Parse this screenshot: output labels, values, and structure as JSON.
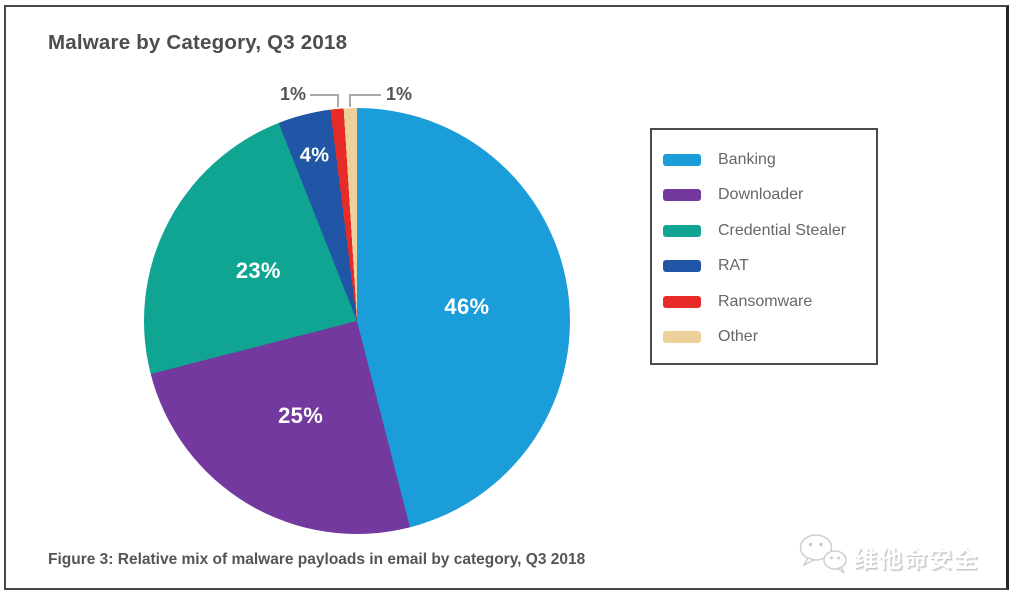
{
  "page": {
    "title": "Malware by Category, Q3 2018",
    "caption": "Figure 3: Relative mix of malware payloads in email by category, Q3 2018"
  },
  "watermark": {
    "text": "维他命安全",
    "icon": "wechat-logo-icon"
  },
  "colors": {
    "banking": "#1b9dd9",
    "downloader": "#74399f",
    "credential_stealer": "#10a493",
    "rat": "#2156a6",
    "ransomware": "#e62b28",
    "other": "#eed09a",
    "title_text": "#4c4d4f",
    "legend_text": "#66676a",
    "callout_line": "#a6a8ab",
    "frame_border": "#47494b"
  },
  "chart_data": {
    "type": "pie",
    "title": "Malware by Category, Q3 2018",
    "unit": "percent",
    "direction": "clockwise",
    "start_angle_deg": 0,
    "legend_position": "right",
    "slices": [
      {
        "label": "Banking",
        "value": 46,
        "display": "46%",
        "color": "#1b9dd9"
      },
      {
        "label": "Downloader",
        "value": 25,
        "display": "25%",
        "color": "#74399f"
      },
      {
        "label": "Credential Stealer",
        "value": 23,
        "display": "23%",
        "color": "#10a493"
      },
      {
        "label": "RAT",
        "value": 4,
        "display": "4%",
        "color": "#2156a6"
      },
      {
        "label": "Ransomware",
        "value": 1,
        "display": "1%",
        "color": "#e62b28"
      },
      {
        "label": "Other",
        "value": 1,
        "display": "1%",
        "color": "#eed09a"
      }
    ]
  }
}
